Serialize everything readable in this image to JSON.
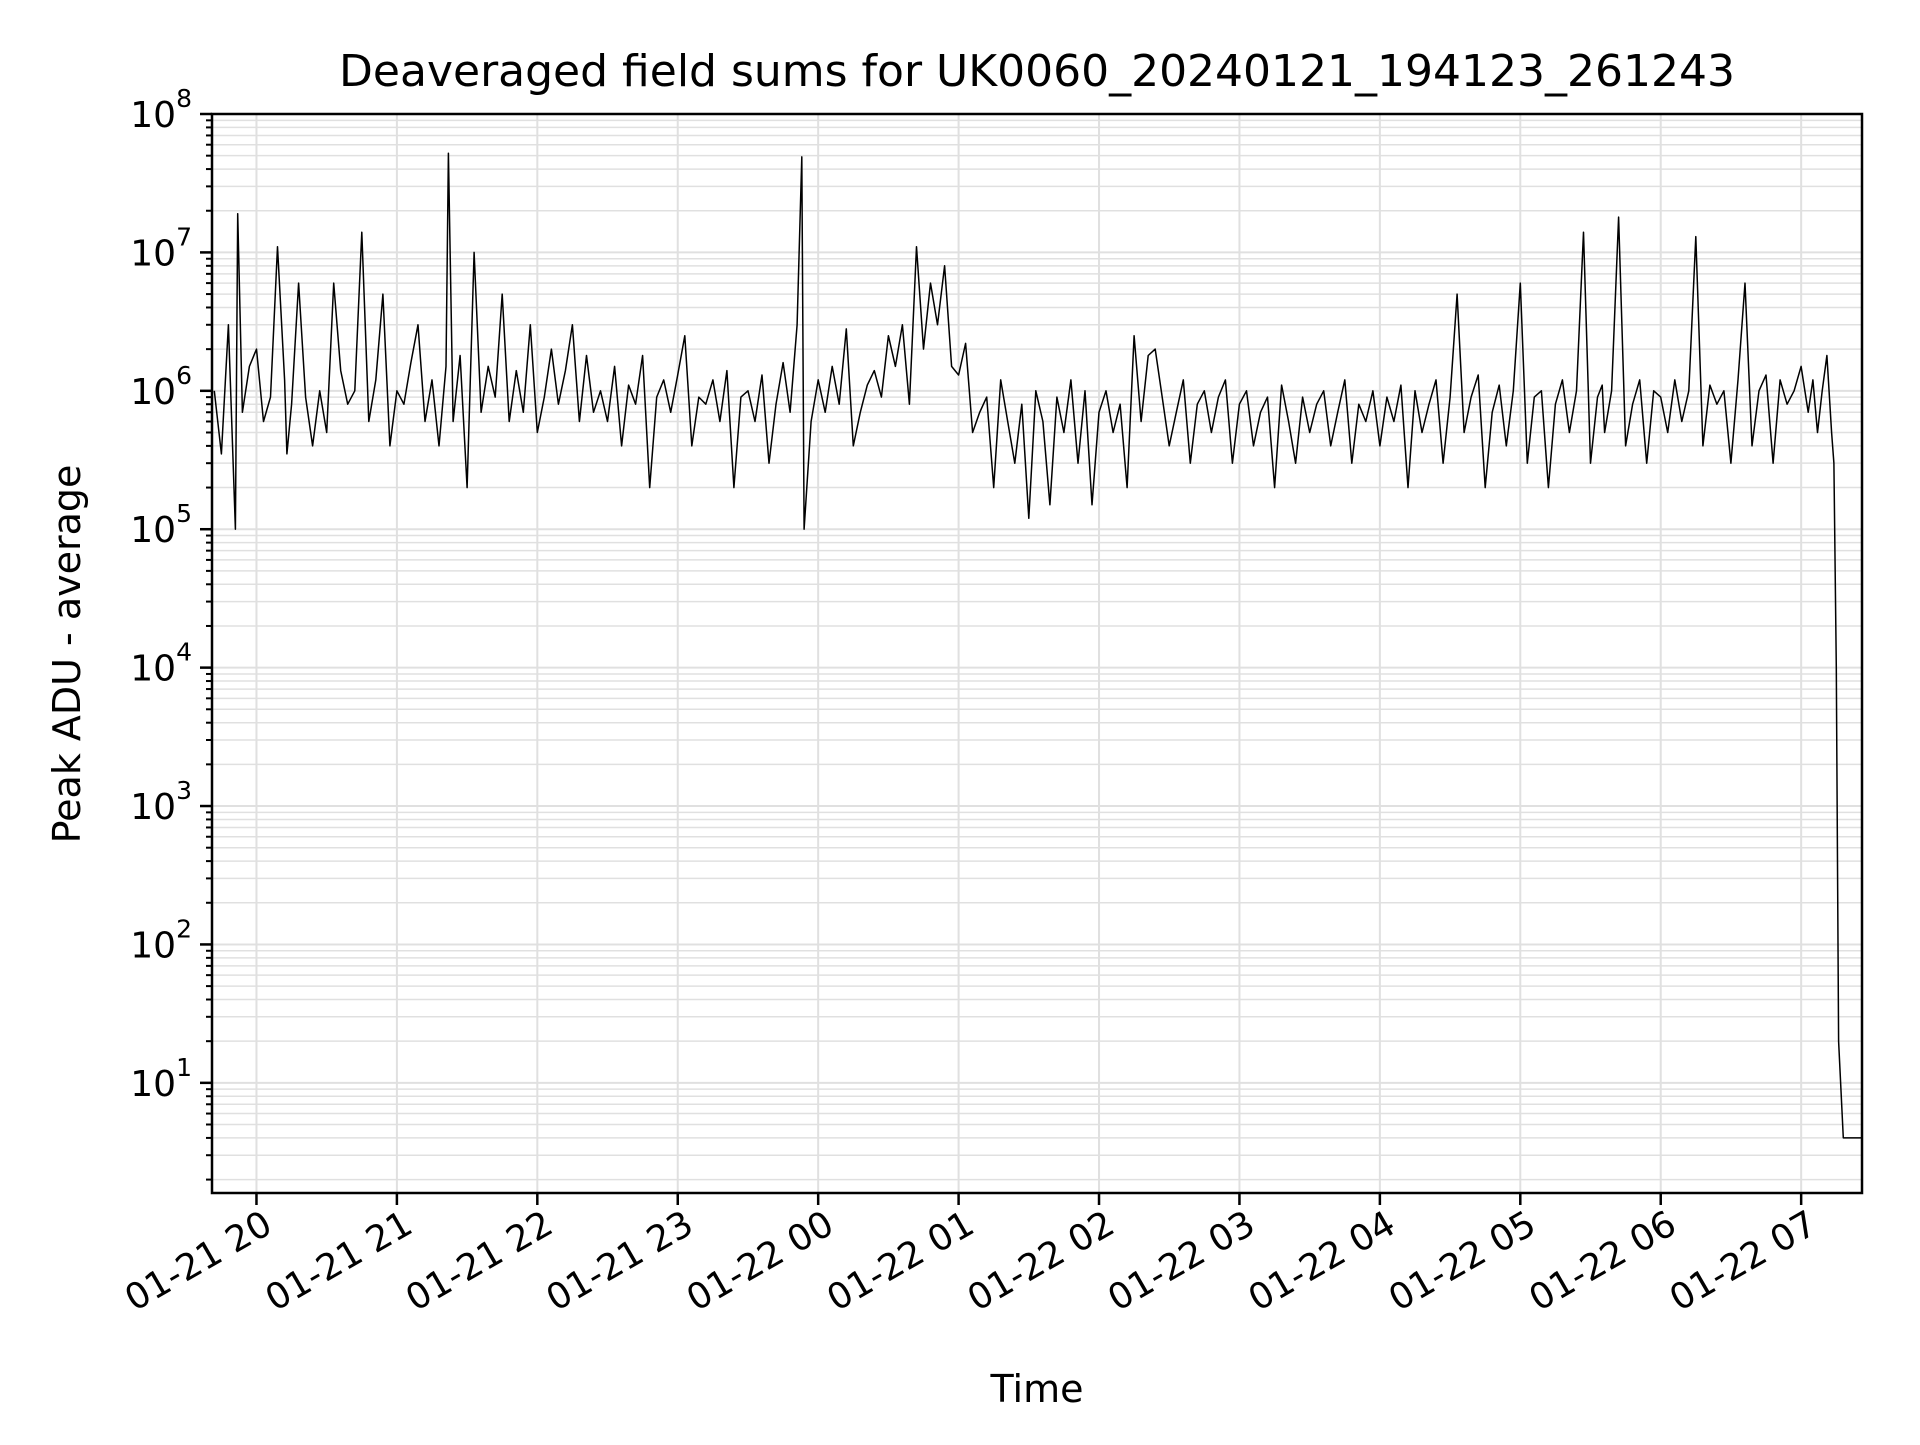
{
  "chart_data": {
    "type": "line",
    "title": "Deaveraged field sums for UK0060_20240121_194123_261243",
    "xlabel": "Time",
    "ylabel": "Peak ADU - average",
    "yscale": "log",
    "ylim": [
      1.6,
      100000000
    ],
    "xlim": [
      "2024-01-21 19:41",
      "2024-01-22 07:26"
    ],
    "grid": true,
    "line_color": "#000000",
    "grid_color": "#e0e0e0",
    "x_ticks": [
      {
        "label": "01-21 20",
        "time": "2024-01-21 20:00"
      },
      {
        "label": "01-21 21",
        "time": "2024-01-21 21:00"
      },
      {
        "label": "01-21 22",
        "time": "2024-01-21 22:00"
      },
      {
        "label": "01-21 23",
        "time": "2024-01-21 23:00"
      },
      {
        "label": "01-22 00",
        "time": "2024-01-22 00:00"
      },
      {
        "label": "01-22 01",
        "time": "2024-01-22 01:00"
      },
      {
        "label": "01-22 02",
        "time": "2024-01-22 02:00"
      },
      {
        "label": "01-22 03",
        "time": "2024-01-22 03:00"
      },
      {
        "label": "01-22 04",
        "time": "2024-01-22 04:00"
      },
      {
        "label": "01-22 05",
        "time": "2024-01-22 05:00"
      },
      {
        "label": "01-22 06",
        "time": "2024-01-22 06:00"
      },
      {
        "label": "01-22 07",
        "time": "2024-01-22 07:00"
      }
    ],
    "y_ticks": [
      {
        "base": "10",
        "exp": "1",
        "value": 10
      },
      {
        "base": "10",
        "exp": "2",
        "value": 100
      },
      {
        "base": "10",
        "exp": "3",
        "value": 1000
      },
      {
        "base": "10",
        "exp": "4",
        "value": 10000
      },
      {
        "base": "10",
        "exp": "5",
        "value": 100000
      },
      {
        "base": "10",
        "exp": "6",
        "value": 1000000
      },
      {
        "base": "10",
        "exp": "7",
        "value": 10000000
      },
      {
        "base": "10",
        "exp": "8",
        "value": 100000000
      }
    ],
    "series": [
      {
        "x": [
          "2024-01-21 19:42",
          "2024-01-21 19:45",
          "2024-01-21 19:48",
          "2024-01-21 19:51",
          "2024-01-21 19:52",
          "2024-01-21 19:54",
          "2024-01-21 19:57",
          "2024-01-21 20:00",
          "2024-01-21 20:03",
          "2024-01-21 20:06",
          "2024-01-21 20:09",
          "2024-01-21 20:12",
          "2024-01-21 20:13",
          "2024-01-21 20:15",
          "2024-01-21 20:18",
          "2024-01-21 20:21",
          "2024-01-21 20:24",
          "2024-01-21 20:27",
          "2024-01-21 20:30",
          "2024-01-21 20:33",
          "2024-01-21 20:36",
          "2024-01-21 20:39",
          "2024-01-21 20:42",
          "2024-01-21 20:45",
          "2024-01-21 20:48",
          "2024-01-21 20:51",
          "2024-01-21 20:54",
          "2024-01-21 20:57",
          "2024-01-21 21:00",
          "2024-01-21 21:03",
          "2024-01-21 21:06",
          "2024-01-21 21:09",
          "2024-01-21 21:12",
          "2024-01-21 21:15",
          "2024-01-21 21:18",
          "2024-01-21 21:21",
          "2024-01-21 21:22",
          "2024-01-21 21:24",
          "2024-01-21 21:27",
          "2024-01-21 21:30",
          "2024-01-21 21:33",
          "2024-01-21 21:36",
          "2024-01-21 21:39",
          "2024-01-21 21:42",
          "2024-01-21 21:45",
          "2024-01-21 21:48",
          "2024-01-21 21:51",
          "2024-01-21 21:54",
          "2024-01-21 21:57",
          "2024-01-21 22:00",
          "2024-01-21 22:03",
          "2024-01-21 22:06",
          "2024-01-21 22:09",
          "2024-01-21 22:12",
          "2024-01-21 22:15",
          "2024-01-21 22:18",
          "2024-01-21 22:21",
          "2024-01-21 22:24",
          "2024-01-21 22:27",
          "2024-01-21 22:30",
          "2024-01-21 22:33",
          "2024-01-21 22:36",
          "2024-01-21 22:39",
          "2024-01-21 22:42",
          "2024-01-21 22:45",
          "2024-01-21 22:48",
          "2024-01-21 22:51",
          "2024-01-21 22:54",
          "2024-01-21 22:57",
          "2024-01-21 23:00",
          "2024-01-21 23:03",
          "2024-01-21 23:06",
          "2024-01-21 23:09",
          "2024-01-21 23:12",
          "2024-01-21 23:15",
          "2024-01-21 23:18",
          "2024-01-21 23:21",
          "2024-01-21 23:24",
          "2024-01-21 23:27",
          "2024-01-21 23:30",
          "2024-01-21 23:33",
          "2024-01-21 23:36",
          "2024-01-21 23:39",
          "2024-01-21 23:42",
          "2024-01-21 23:45",
          "2024-01-21 23:48",
          "2024-01-21 23:51",
          "2024-01-21 23:53",
          "2024-01-21 23:54",
          "2024-01-21 23:57",
          "2024-01-22 00:00",
          "2024-01-22 00:03",
          "2024-01-22 00:06",
          "2024-01-22 00:09",
          "2024-01-22 00:12",
          "2024-01-22 00:15",
          "2024-01-22 00:18",
          "2024-01-22 00:21",
          "2024-01-22 00:24",
          "2024-01-22 00:27",
          "2024-01-22 00:30",
          "2024-01-22 00:33",
          "2024-01-22 00:36",
          "2024-01-22 00:39",
          "2024-01-22 00:42",
          "2024-01-22 00:45",
          "2024-01-22 00:48",
          "2024-01-22 00:51",
          "2024-01-22 00:54",
          "2024-01-22 00:57",
          "2024-01-22 01:00",
          "2024-01-22 01:03",
          "2024-01-22 01:06",
          "2024-01-22 01:09",
          "2024-01-22 01:12",
          "2024-01-22 01:15",
          "2024-01-22 01:18",
          "2024-01-22 01:21",
          "2024-01-22 01:24",
          "2024-01-22 01:27",
          "2024-01-22 01:30",
          "2024-01-22 01:33",
          "2024-01-22 01:36",
          "2024-01-22 01:39",
          "2024-01-22 01:42",
          "2024-01-22 01:45",
          "2024-01-22 01:48",
          "2024-01-22 01:51",
          "2024-01-22 01:54",
          "2024-01-22 01:57",
          "2024-01-22 02:00",
          "2024-01-22 02:03",
          "2024-01-22 02:06",
          "2024-01-22 02:09",
          "2024-01-22 02:12",
          "2024-01-22 02:15",
          "2024-01-22 02:18",
          "2024-01-22 02:21",
          "2024-01-22 02:24",
          "2024-01-22 02:27",
          "2024-01-22 02:30",
          "2024-01-22 02:33",
          "2024-01-22 02:36",
          "2024-01-22 02:39",
          "2024-01-22 02:42",
          "2024-01-22 02:45",
          "2024-01-22 02:48",
          "2024-01-22 02:51",
          "2024-01-22 02:54",
          "2024-01-22 02:57",
          "2024-01-22 03:00",
          "2024-01-22 03:03",
          "2024-01-22 03:06",
          "2024-01-22 03:09",
          "2024-01-22 03:12",
          "2024-01-22 03:15",
          "2024-01-22 03:18",
          "2024-01-22 03:21",
          "2024-01-22 03:24",
          "2024-01-22 03:27",
          "2024-01-22 03:30",
          "2024-01-22 03:33",
          "2024-01-22 03:36",
          "2024-01-22 03:39",
          "2024-01-22 03:42",
          "2024-01-22 03:45",
          "2024-01-22 03:48",
          "2024-01-22 03:51",
          "2024-01-22 03:54",
          "2024-01-22 03:57",
          "2024-01-22 04:00",
          "2024-01-22 04:03",
          "2024-01-22 04:06",
          "2024-01-22 04:09",
          "2024-01-22 04:12",
          "2024-01-22 04:15",
          "2024-01-22 04:18",
          "2024-01-22 04:21",
          "2024-01-22 04:24",
          "2024-01-22 04:27",
          "2024-01-22 04:30",
          "2024-01-22 04:33",
          "2024-01-22 04:36",
          "2024-01-22 04:39",
          "2024-01-22 04:42",
          "2024-01-22 04:45",
          "2024-01-22 04:48",
          "2024-01-22 04:51",
          "2024-01-22 04:54",
          "2024-01-22 04:57",
          "2024-01-22 05:00",
          "2024-01-22 05:03",
          "2024-01-22 05:06",
          "2024-01-22 05:09",
          "2024-01-22 05:12",
          "2024-01-22 05:15",
          "2024-01-22 05:18",
          "2024-01-22 05:21",
          "2024-01-22 05:24",
          "2024-01-22 05:27",
          "2024-01-22 05:30",
          "2024-01-22 05:33",
          "2024-01-22 05:35",
          "2024-01-22 05:36",
          "2024-01-22 05:39",
          "2024-01-22 05:42",
          "2024-01-22 05:45",
          "2024-01-22 05:48",
          "2024-01-22 05:51",
          "2024-01-22 05:54",
          "2024-01-22 05:57",
          "2024-01-22 06:00",
          "2024-01-22 06:03",
          "2024-01-22 06:06",
          "2024-01-22 06:09",
          "2024-01-22 06:12",
          "2024-01-22 06:15",
          "2024-01-22 06:18",
          "2024-01-22 06:21",
          "2024-01-22 06:24",
          "2024-01-22 06:27",
          "2024-01-22 06:30",
          "2024-01-22 06:33",
          "2024-01-22 06:36",
          "2024-01-22 06:39",
          "2024-01-22 06:42",
          "2024-01-22 06:45",
          "2024-01-22 06:48",
          "2024-01-22 06:51",
          "2024-01-22 06:54",
          "2024-01-22 06:57",
          "2024-01-22 07:00",
          "2024-01-22 07:03",
          "2024-01-22 07:05",
          "2024-01-22 07:07",
          "2024-01-22 07:09",
          "2024-01-22 07:11",
          "2024-01-22 07:13",
          "2024-01-22 07:14",
          "2024-01-22 07:15",
          "2024-01-22 07:16",
          "2024-01-22 07:18",
          "2024-01-22 07:20",
          "2024-01-22 07:22",
          "2024-01-22 07:24",
          "2024-01-22 07:26"
        ],
        "y": [
          1000000,
          350000,
          3000000,
          100000,
          19000000,
          700000,
          1500000,
          2000000,
          600000,
          900000,
          11000000,
          1200000,
          350000,
          800000,
          6000000,
          900000,
          400000,
          1000000,
          500000,
          6000000,
          1400000,
          800000,
          1000000,
          14000000,
          600000,
          1200000,
          5000000,
          400000,
          1000000,
          800000,
          1600000,
          3000000,
          600000,
          1200000,
          400000,
          1500000,
          52000000,
          600000,
          1800000,
          200000,
          10000000,
          700000,
          1500000,
          900000,
          5000000,
          600000,
          1400000,
          700000,
          3000000,
          500000,
          900000,
          2000000,
          800000,
          1400000,
          3000000,
          600000,
          1800000,
          700000,
          1000000,
          600000,
          1500000,
          400000,
          1100000,
          800000,
          1800000,
          200000,
          900000,
          1200000,
          700000,
          1300000,
          2500000,
          400000,
          900000,
          800000,
          1200000,
          600000,
          1400000,
          200000,
          900000,
          1000000,
          600000,
          1300000,
          300000,
          800000,
          1600000,
          700000,
          3000000,
          49000000,
          100000,
          600000,
          1200000,
          700000,
          1500000,
          800000,
          2800000,
          400000,
          700000,
          1100000,
          1400000,
          900000,
          2500000,
          1500000,
          3000000,
          800000,
          11000000,
          2000000,
          6000000,
          3000000,
          8000000,
          1500000,
          1300000,
          2200000,
          500000,
          700000,
          900000,
          200000,
          1200000,
          600000,
          300000,
          800000,
          120000,
          1000000,
          600000,
          150000,
          900000,
          500000,
          1200000,
          300000,
          1000000,
          150000,
          700000,
          1000000,
          500000,
          800000,
          200000,
          2500000,
          600000,
          1800000,
          2000000,
          900000,
          400000,
          700000,
          1200000,
          300000,
          800000,
          1000000,
          500000,
          900000,
          1200000,
          300000,
          800000,
          1000000,
          400000,
          700000,
          900000,
          200000,
          1100000,
          600000,
          300000,
          900000,
          500000,
          800000,
          1000000,
          400000,
          700000,
          1200000,
          300000,
          800000,
          600000,
          1000000,
          400000,
          900000,
          600000,
          1100000,
          200000,
          1000000,
          500000,
          800000,
          1200000,
          300000,
          900000,
          5000000,
          500000,
          900000,
          1300000,
          200000,
          700000,
          1100000,
          400000,
          1000000,
          6000000,
          300000,
          900000,
          1000000,
          200000,
          800000,
          1200000,
          500000,
          1000000,
          14000000,
          300000,
          900000,
          1100000,
          500000,
          1000000,
          18000000,
          400000,
          800000,
          1200000,
          300000,
          1000000,
          900000,
          500000,
          1200000,
          600000,
          1000000,
          13000000,
          400000,
          1100000,
          800000,
          1000000,
          300000,
          1200000,
          6000000,
          400000,
          1000000,
          1300000,
          300000,
          1200000,
          800000,
          1000000,
          1500000,
          700000,
          1200000,
          500000,
          1000000,
          1800000,
          500000,
          300000,
          10000,
          20,
          4,
          4,
          4,
          4,
          4
        ]
      }
    ]
  }
}
